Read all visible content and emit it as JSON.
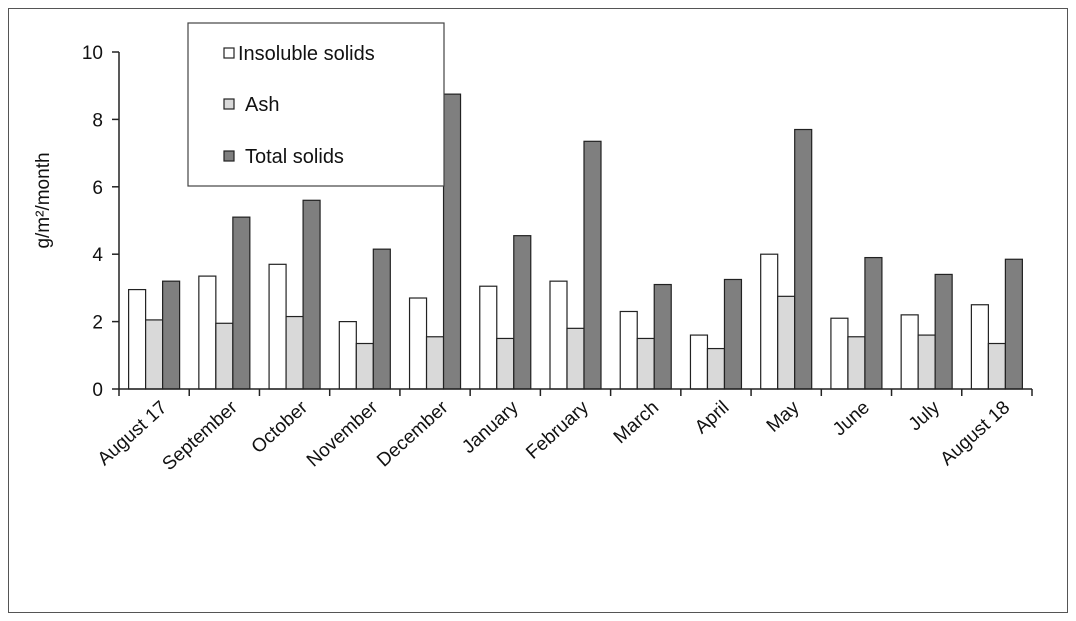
{
  "chart_data": {
    "type": "bar",
    "title": "",
    "xlabel": "",
    "ylabel": "g/m²/month",
    "ylim": [
      0,
      10
    ],
    "yticks": [
      0,
      2,
      4,
      6,
      8,
      10
    ],
    "grid": false,
    "legend_position": "top-left",
    "categories": [
      "August 17",
      "September",
      "October",
      "November",
      "December",
      "January",
      "February",
      "March",
      "April",
      "May",
      "June",
      "July",
      "August 18"
    ],
    "series": [
      {
        "name": "Insoluble solids",
        "color": "#ffffff",
        "values": [
          2.95,
          3.35,
          3.7,
          2.0,
          2.7,
          3.05,
          3.2,
          2.3,
          1.6,
          4.0,
          2.1,
          2.2,
          2.5
        ]
      },
      {
        "name": "Ash",
        "color": "#d9d9d9",
        "values": [
          2.05,
          1.95,
          2.15,
          1.35,
          1.55,
          1.5,
          1.8,
          1.5,
          1.2,
          2.75,
          1.55,
          1.6,
          1.35
        ]
      },
      {
        "name": "Total solids",
        "color": "#7f7f7f",
        "values": [
          3.2,
          5.1,
          5.6,
          4.15,
          8.75,
          4.55,
          7.35,
          3.1,
          3.25,
          7.7,
          3.9,
          3.4,
          3.85
        ]
      }
    ]
  }
}
